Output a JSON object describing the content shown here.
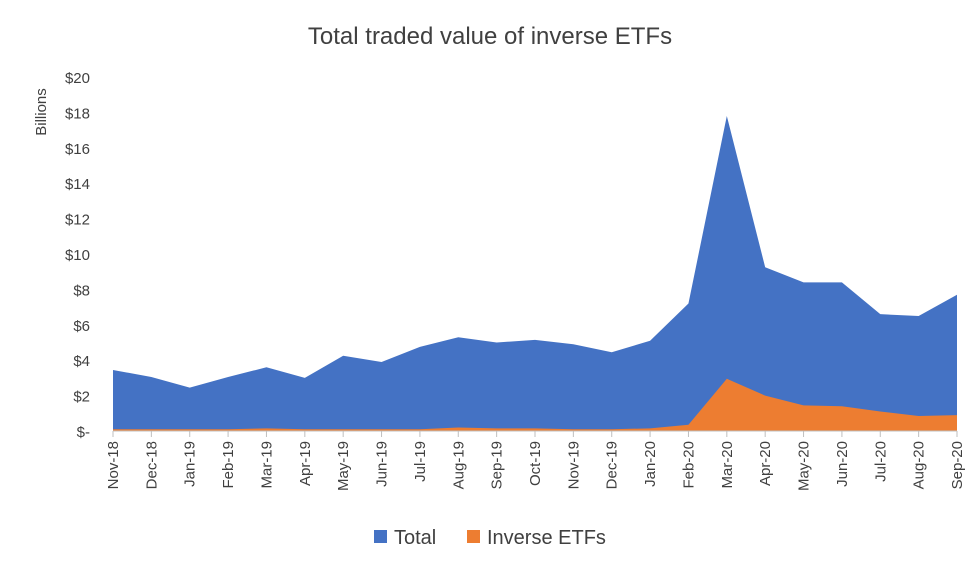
{
  "chart_data": {
    "type": "area",
    "title": "Total traded value of inverse ETFs",
    "xlabel": "",
    "ylabel": "Billions",
    "categories": [
      "Nov-18",
      "Dec-18",
      "Jan-19",
      "Feb-19",
      "Mar-19",
      "Apr-19",
      "May-19",
      "Jun-19",
      "Jul-19",
      "Aug-19",
      "Sep-19",
      "Oct-19",
      "Nov-19",
      "Dec-19",
      "Jan-20",
      "Feb-20",
      "Mar-20",
      "Apr-20",
      "May-20",
      "Jun-20",
      "Jul-20",
      "Aug-20",
      "Sep-20"
    ],
    "ylim": [
      0,
      20
    ],
    "yticks": [
      0,
      2,
      4,
      6,
      8,
      10,
      12,
      14,
      16,
      18,
      20
    ],
    "ytick_labels": [
      "$-",
      "$2",
      "$4",
      "$6",
      "$8",
      "$10",
      "$12",
      "$14",
      "$16",
      "$18",
      "$20"
    ],
    "grid": false,
    "legend_position": "bottom",
    "series": [
      {
        "name": "Total",
        "color": "#4472C4",
        "values": [
          3.45,
          3.05,
          2.45,
          3.05,
          3.6,
          3.0,
          4.25,
          3.9,
          4.75,
          5.3,
          5.0,
          5.15,
          4.9,
          4.45,
          5.1,
          7.2,
          17.8,
          9.25,
          8.4,
          8.4,
          6.6,
          6.5,
          7.7
        ]
      },
      {
        "name": "Inverse ETFs",
        "color": "#ED7D31",
        "values": [
          0.1,
          0.1,
          0.1,
          0.1,
          0.15,
          0.1,
          0.1,
          0.1,
          0.1,
          0.2,
          0.15,
          0.15,
          0.1,
          0.1,
          0.15,
          0.35,
          2.95,
          2.0,
          1.45,
          1.4,
          1.1,
          0.85,
          0.9
        ]
      }
    ]
  }
}
